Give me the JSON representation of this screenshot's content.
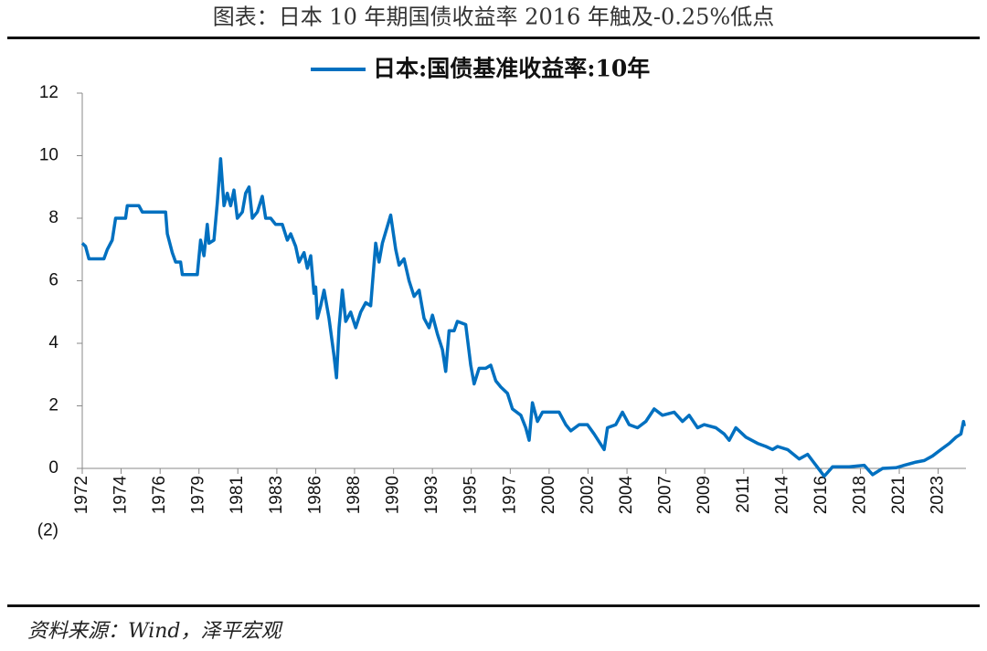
{
  "chart_data": {
    "type": "line",
    "title": "图表：日本 10 年期国债收益率 2016 年触及-0.25%低点",
    "source": "资料来源：Wind，泽平宏观",
    "xlim": [
      1972,
      2025
    ],
    "ylim": [
      -2,
      12
    ],
    "yticks": [
      {
        "value": -2,
        "label": "(2)",
        "color": "#e00000"
      },
      0,
      2,
      4,
      6,
      8,
      10,
      12
    ],
    "xticks": [
      {
        "value": 1972.0,
        "label": "1972"
      },
      {
        "value": 1974.33,
        "label": "1974"
      },
      {
        "value": 1976.67,
        "label": "1976"
      },
      {
        "value": 1979.0,
        "label": "1979"
      },
      {
        "value": 1981.33,
        "label": "1981"
      },
      {
        "value": 1983.67,
        "label": "1983"
      },
      {
        "value": 1986.0,
        "label": "1986"
      },
      {
        "value": 1988.33,
        "label": "1988"
      },
      {
        "value": 1990.67,
        "label": "1990"
      },
      {
        "value": 1993.0,
        "label": "1993"
      },
      {
        "value": 1995.33,
        "label": "1995"
      },
      {
        "value": 1997.67,
        "label": "1997"
      },
      {
        "value": 2000.0,
        "label": "2000"
      },
      {
        "value": 2002.33,
        "label": "2002"
      },
      {
        "value": 2004.67,
        "label": "2004"
      },
      {
        "value": 2007.0,
        "label": "2007"
      },
      {
        "value": 2009.33,
        "label": "2009"
      },
      {
        "value": 2011.67,
        "label": "2011"
      },
      {
        "value": 2014.0,
        "label": "2014"
      },
      {
        "value": 2016.33,
        "label": "2016"
      },
      {
        "value": 2018.67,
        "label": "2018"
      },
      {
        "value": 2021.0,
        "label": "2021"
      },
      {
        "value": 2023.33,
        "label": "2023"
      }
    ],
    "x": [
      1972.0,
      1972.2,
      1972.4,
      1973.3,
      1973.5,
      1973.8,
      1974.0,
      1974.6,
      1974.7,
      1975.4,
      1975.6,
      1977.0,
      1977.1,
      1977.4,
      1977.6,
      1977.9,
      1978.0,
      1978.9,
      1979.1,
      1979.3,
      1979.5,
      1979.6,
      1979.9,
      1980.1,
      1980.3,
      1980.5,
      1980.7,
      1980.9,
      1981.1,
      1981.3,
      1981.6,
      1981.8,
      1982.0,
      1982.2,
      1982.5,
      1982.8,
      1983.0,
      1983.3,
      1983.6,
      1984.0,
      1984.3,
      1984.5,
      1984.8,
      1985.0,
      1985.3,
      1985.5,
      1985.7,
      1985.9,
      1986.0,
      1986.1,
      1986.3,
      1986.5,
      1986.8,
      1987.1,
      1987.25,
      1987.4,
      1987.6,
      1987.8,
      1988.1,
      1988.4,
      1988.7,
      1989.0,
      1989.3,
      1989.6,
      1989.8,
      1990.0,
      1990.5,
      1990.8,
      1991.0,
      1991.3,
      1991.6,
      1991.9,
      1992.2,
      1992.5,
      1992.8,
      1993.0,
      1993.3,
      1993.6,
      1993.8,
      1994.0,
      1994.3,
      1994.5,
      1995.0,
      1995.3,
      1995.5,
      1995.8,
      1996.2,
      1996.5,
      1996.8,
      1997.1,
      1997.5,
      1997.8,
      1998.3,
      1998.6,
      1998.8,
      1999.0,
      1999.3,
      1999.6,
      2000.0,
      2000.6,
      2001.0,
      2001.3,
      2001.8,
      2002.0,
      2002.3,
      2002.7,
      2003.3,
      2003.5,
      2004.0,
      2004.4,
      2004.8,
      2005.3,
      2005.8,
      2006.3,
      2006.8,
      2007.5,
      2008.0,
      2008.4,
      2008.9,
      2009.3,
      2010.0,
      2010.5,
      2010.8,
      2011.2,
      2011.8,
      2012.5,
      2013.0,
      2013.4,
      2013.7,
      2014.3,
      2015.0,
      2015.5,
      2016.0,
      2016.5,
      2017.0,
      2018.0,
      2018.9,
      2019.4,
      2020.0,
      2020.8,
      2021.3,
      2022.0,
      2022.5,
      2023.0,
      2023.5,
      2024.0,
      2024.4,
      2024.7,
      2024.85,
      2024.9
    ],
    "series": [
      {
        "name": "日本:国债基准收益率:10年",
        "color": "#0070c0",
        "values": [
          7.2,
          7.1,
          6.7,
          6.7,
          7.0,
          7.3,
          8.0,
          8.0,
          8.4,
          8.4,
          8.2,
          8.2,
          7.5,
          6.9,
          6.6,
          6.6,
          6.2,
          6.2,
          7.3,
          6.8,
          7.8,
          7.2,
          7.3,
          8.5,
          9.9,
          8.4,
          8.8,
          8.4,
          8.9,
          8.0,
          8.2,
          8.8,
          9.0,
          8.0,
          8.2,
          8.7,
          8.0,
          8.0,
          7.8,
          7.8,
          7.3,
          7.5,
          7.1,
          6.6,
          6.9,
          6.4,
          6.8,
          5.6,
          5.8,
          4.8,
          5.2,
          5.7,
          4.8,
          3.6,
          2.9,
          4.5,
          5.7,
          4.7,
          5.0,
          4.5,
          5.0,
          5.3,
          5.2,
          7.2,
          6.6,
          7.2,
          8.1,
          7.0,
          6.5,
          6.7,
          6.0,
          5.5,
          5.7,
          4.8,
          4.5,
          4.9,
          4.3,
          3.8,
          3.1,
          4.4,
          4.4,
          4.7,
          4.6,
          3.3,
          2.7,
          3.2,
          3.2,
          3.3,
          2.8,
          2.6,
          2.4,
          1.9,
          1.7,
          1.3,
          0.9,
          2.1,
          1.5,
          1.8,
          1.8,
          1.8,
          1.4,
          1.2,
          1.4,
          1.4,
          1.4,
          1.1,
          0.6,
          1.3,
          1.4,
          1.8,
          1.4,
          1.3,
          1.5,
          1.9,
          1.7,
          1.8,
          1.5,
          1.7,
          1.3,
          1.4,
          1.3,
          1.1,
          0.9,
          1.3,
          1.0,
          0.8,
          0.7,
          0.6,
          0.7,
          0.6,
          0.3,
          0.45,
          0.1,
          -0.25,
          0.05,
          0.05,
          0.1,
          -0.2,
          0.0,
          0.02,
          0.1,
          0.2,
          0.25,
          0.4,
          0.6,
          0.8,
          1.0,
          1.1,
          1.5,
          1.35
        ]
      }
    ]
  }
}
